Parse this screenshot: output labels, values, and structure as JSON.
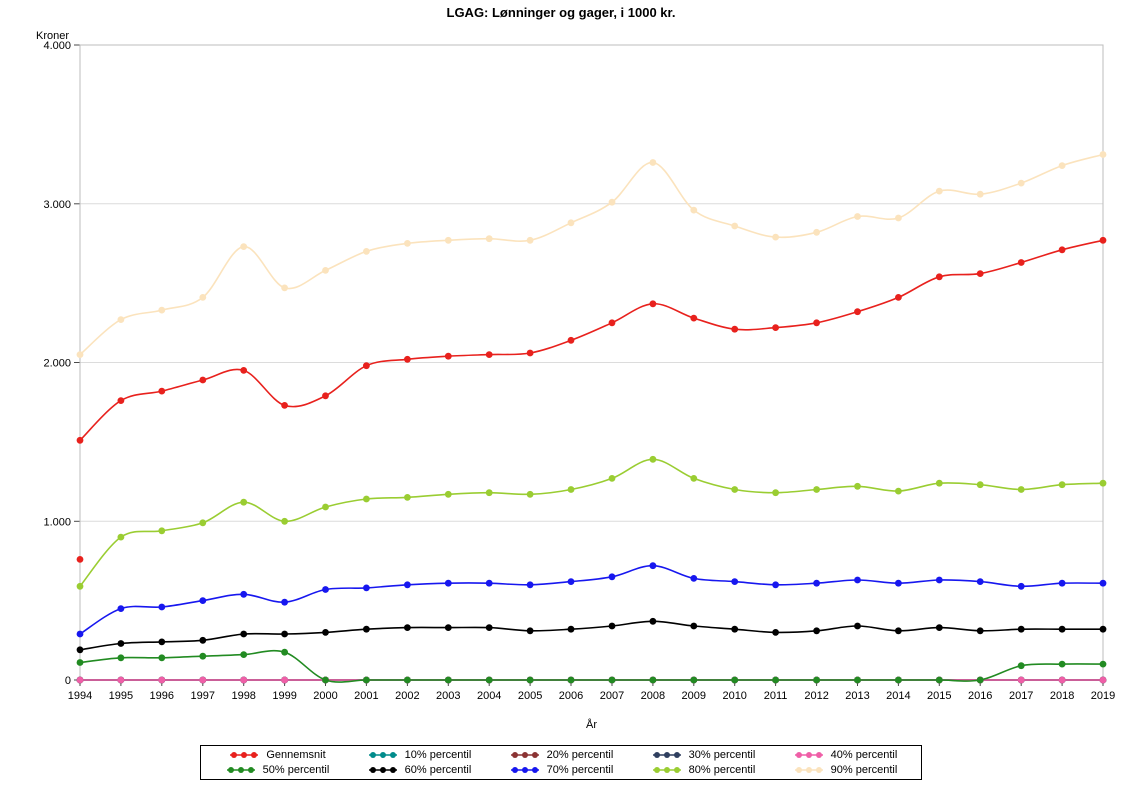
{
  "title": "LGAG: Lønninger og gager, i 1000 kr.",
  "chart_data": {
    "type": "line",
    "title": "LGAG: Lønninger og gager, i 1000 kr.",
    "xlabel": "År",
    "ylabel": "Kroner",
    "ylim": [
      0,
      4000
    ],
    "yticks": [
      0,
      1000,
      2000,
      3000,
      4000
    ],
    "ytick_labels": [
      "0",
      "1.000",
      "2.000",
      "3.000",
      "4.000"
    ],
    "grid": "horizontal",
    "legend_position": "bottom",
    "x": [
      1994,
      1995,
      1996,
      1997,
      1998,
      1999,
      2000,
      2001,
      2002,
      2003,
      2004,
      2005,
      2006,
      2007,
      2008,
      2009,
      2010,
      2011,
      2012,
      2013,
      2014,
      2015,
      2016,
      2017,
      2018,
      2019
    ],
    "series": [
      {
        "name": "Gennemsnit",
        "color": "#e8211d",
        "values": [
          1510,
          1760,
          1820,
          1890,
          1950,
          1730,
          1790,
          1980,
          2020,
          2040,
          2050,
          2060,
          2140,
          2250,
          2370,
          2280,
          2210,
          2220,
          2250,
          2320,
          2410,
          2540,
          2560,
          2630,
          2710,
          2770
        ]
      },
      {
        "name": "10% percentil",
        "color": "#008b8b",
        "values": [
          0,
          0,
          0,
          0,
          0,
          0,
          0,
          0,
          0,
          0,
          0,
          0,
          0,
          0,
          0,
          0,
          0,
          0,
          0,
          0,
          0,
          0,
          0,
          0,
          0,
          0
        ]
      },
      {
        "name": "20% percentil",
        "color": "#8b3333",
        "values": [
          0,
          0,
          0,
          0,
          0,
          0,
          0,
          0,
          0,
          0,
          0,
          0,
          0,
          0,
          0,
          0,
          0,
          0,
          0,
          0,
          0,
          0,
          0,
          0,
          0,
          0
        ]
      },
      {
        "name": "30% percentil",
        "color": "#2f3f5f",
        "values": [
          0,
          0,
          0,
          0,
          0,
          0,
          0,
          0,
          0,
          0,
          0,
          0,
          0,
          0,
          0,
          0,
          0,
          0,
          0,
          0,
          0,
          0,
          0,
          0,
          0,
          0
        ]
      },
      {
        "name": "40% percentil",
        "color": "#ef5fa7",
        "values": [
          0,
          0,
          0,
          0,
          0,
          0,
          0,
          0,
          0,
          0,
          0,
          0,
          0,
          0,
          0,
          0,
          0,
          0,
          0,
          0,
          0,
          0,
          0,
          0,
          0,
          0
        ]
      },
      {
        "name": "50% percentil",
        "color": "#228b22",
        "values": [
          110,
          140,
          140,
          150,
          160,
          175,
          0,
          0,
          0,
          0,
          0,
          0,
          0,
          0,
          0,
          0,
          0,
          0,
          0,
          0,
          0,
          0,
          0,
          90,
          100,
          100
        ]
      },
      {
        "name": "60% percentil",
        "color": "#000000",
        "values": [
          190,
          230,
          240,
          250,
          290,
          290,
          300,
          320,
          330,
          330,
          330,
          310,
          320,
          340,
          370,
          340,
          320,
          300,
          310,
          340,
          310,
          330,
          310,
          320,
          320,
          320
        ]
      },
      {
        "name": "70% percentil",
        "color": "#1717ef",
        "values": [
          290,
          450,
          460,
          500,
          540,
          490,
          570,
          580,
          600,
          610,
          610,
          600,
          620,
          650,
          720,
          640,
          620,
          600,
          610,
          630,
          610,
          630,
          620,
          590,
          610,
          610
        ]
      },
      {
        "name": "80% percentil",
        "color": "#9acd32",
        "values": [
          590,
          900,
          940,
          990,
          1120,
          1000,
          1090,
          1140,
          1150,
          1170,
          1180,
          1170,
          1200,
          1270,
          1390,
          1270,
          1200,
          1180,
          1200,
          1220,
          1190,
          1240,
          1230,
          1200,
          1230,
          1240
        ]
      },
      {
        "name": "90% percentil",
        "color": "#fbe3bd",
        "values": [
          2050,
          2270,
          2330,
          2410,
          2730,
          2470,
          2580,
          2700,
          2750,
          2770,
          2780,
          2770,
          2880,
          3010,
          3260,
          2960,
          2860,
          2790,
          2820,
          2920,
          2910,
          3080,
          3060,
          3130,
          3240,
          3310
        ]
      }
    ],
    "extra_points": [
      {
        "series": "Gennemsnit",
        "x": 1994,
        "y": 760
      }
    ]
  }
}
